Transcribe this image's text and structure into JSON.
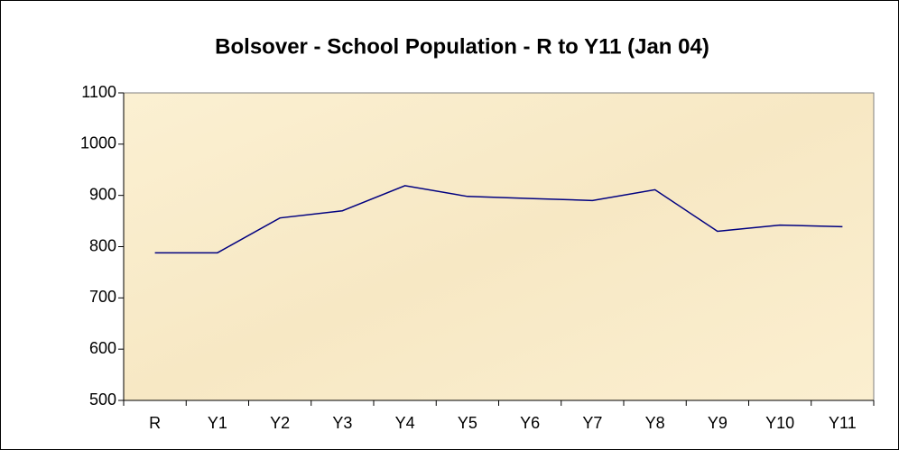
{
  "chart_data": {
    "type": "line",
    "title": "Bolsover - School Population - R to Y11 (Jan 04)",
    "categories": [
      "R",
      "Y1",
      "Y2",
      "Y3",
      "Y4",
      "Y5",
      "Y6",
      "Y7",
      "Y8",
      "Y9",
      "Y10",
      "Y11"
    ],
    "values": [
      788,
      788,
      856,
      870,
      919,
      898,
      894,
      890,
      911,
      830,
      842,
      839
    ],
    "color": "#000080",
    "ylim": [
      500,
      1100
    ],
    "yticks": [
      500,
      600,
      700,
      800,
      900,
      1000,
      1100
    ],
    "grid": false
  }
}
